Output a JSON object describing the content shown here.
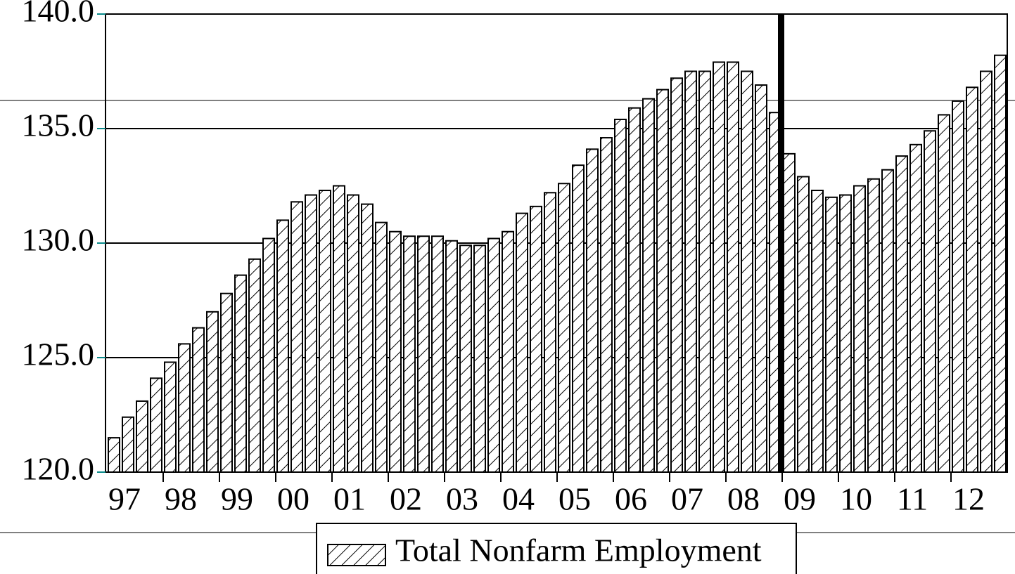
{
  "chart_data": {
    "type": "bar",
    "categories": [
      "97",
      null,
      null,
      null,
      "98",
      null,
      null,
      null,
      "99",
      null,
      null,
      null,
      "00",
      null,
      null,
      null,
      "01",
      null,
      null,
      null,
      "02",
      null,
      null,
      null,
      "03",
      null,
      null,
      null,
      "04",
      null,
      null,
      null,
      "05",
      null,
      null,
      null,
      "06",
      null,
      null,
      null,
      "07",
      null,
      null,
      null,
      "08",
      null,
      null,
      null,
      "09",
      null,
      null,
      null,
      "10",
      null,
      null,
      null,
      "11",
      null,
      null,
      null,
      "12",
      null,
      null,
      null
    ],
    "series": [
      {
        "name": "Total Nonfarm Employment",
        "color": "#000000",
        "values": [
          121.5,
          122.4,
          123.1,
          124.1,
          124.8,
          125.6,
          126.3,
          127.0,
          127.8,
          128.6,
          129.3,
          130.2,
          131.0,
          131.8,
          132.1,
          132.3,
          132.5,
          132.1,
          131.7,
          130.9,
          130.5,
          130.3,
          130.3,
          130.3,
          130.1,
          129.9,
          129.9,
          130.2,
          130.5,
          131.3,
          131.6,
          132.2,
          132.6,
          133.4,
          134.1,
          134.6,
          135.4,
          135.9,
          136.3,
          136.7,
          137.2,
          137.5,
          137.5,
          137.9,
          137.9,
          137.5,
          136.9,
          135.7,
          133.9,
          132.9,
          132.3,
          132.0,
          132.1,
          132.5,
          132.8,
          133.2,
          133.8,
          134.3,
          134.9,
          135.6,
          136.2,
          136.8,
          137.5,
          138.2
        ]
      }
    ],
    "ylim": [
      120,
      140
    ],
    "yticks": [
      {
        "value": 120,
        "label": "120.0"
      },
      {
        "value": 125,
        "label": "125.0"
      },
      {
        "value": 130,
        "label": "130.0"
      },
      {
        "value": 135,
        "label": "135.0"
      },
      {
        "value": 140,
        "label": "140.0"
      }
    ],
    "grid": true
  }
}
